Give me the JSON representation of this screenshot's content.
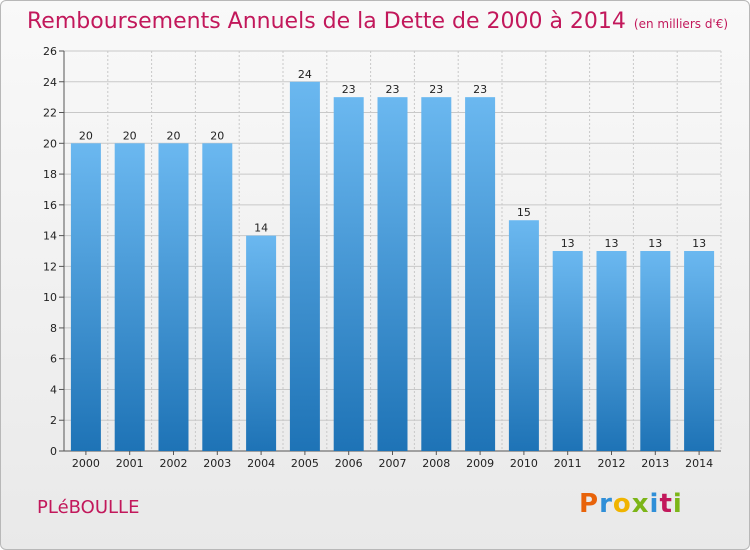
{
  "header": {
    "title": "Remboursements Annuels de la Dette de 2000 à 2014",
    "subtitle": "(en milliers d'€)"
  },
  "footer": {
    "place": "PLéBOULLE",
    "logo": "Proxiti"
  },
  "colors": {
    "title": "#c2185b",
    "bar_top": "#6bb8f0",
    "bar_bottom": "#1e73b6",
    "grid": "#c8c8c8"
  },
  "chart_data": {
    "type": "bar",
    "categories": [
      "2000",
      "2001",
      "2002",
      "2003",
      "2004",
      "2005",
      "2006",
      "2007",
      "2008",
      "2009",
      "2010",
      "2011",
      "2012",
      "2013",
      "2014"
    ],
    "values": [
      20,
      20,
      20,
      20,
      14,
      24,
      23,
      23,
      23,
      23,
      15,
      13,
      13,
      13,
      13
    ],
    "title": "Remboursements Annuels de la Dette de 2000 à 2014",
    "xlabel": "",
    "ylabel": "",
    "ylim": [
      0,
      26
    ],
    "yticks": [
      0,
      2,
      4,
      6,
      8,
      10,
      12,
      14,
      16,
      18,
      20,
      22,
      24,
      26
    ],
    "grid": true,
    "data_labels": true
  }
}
